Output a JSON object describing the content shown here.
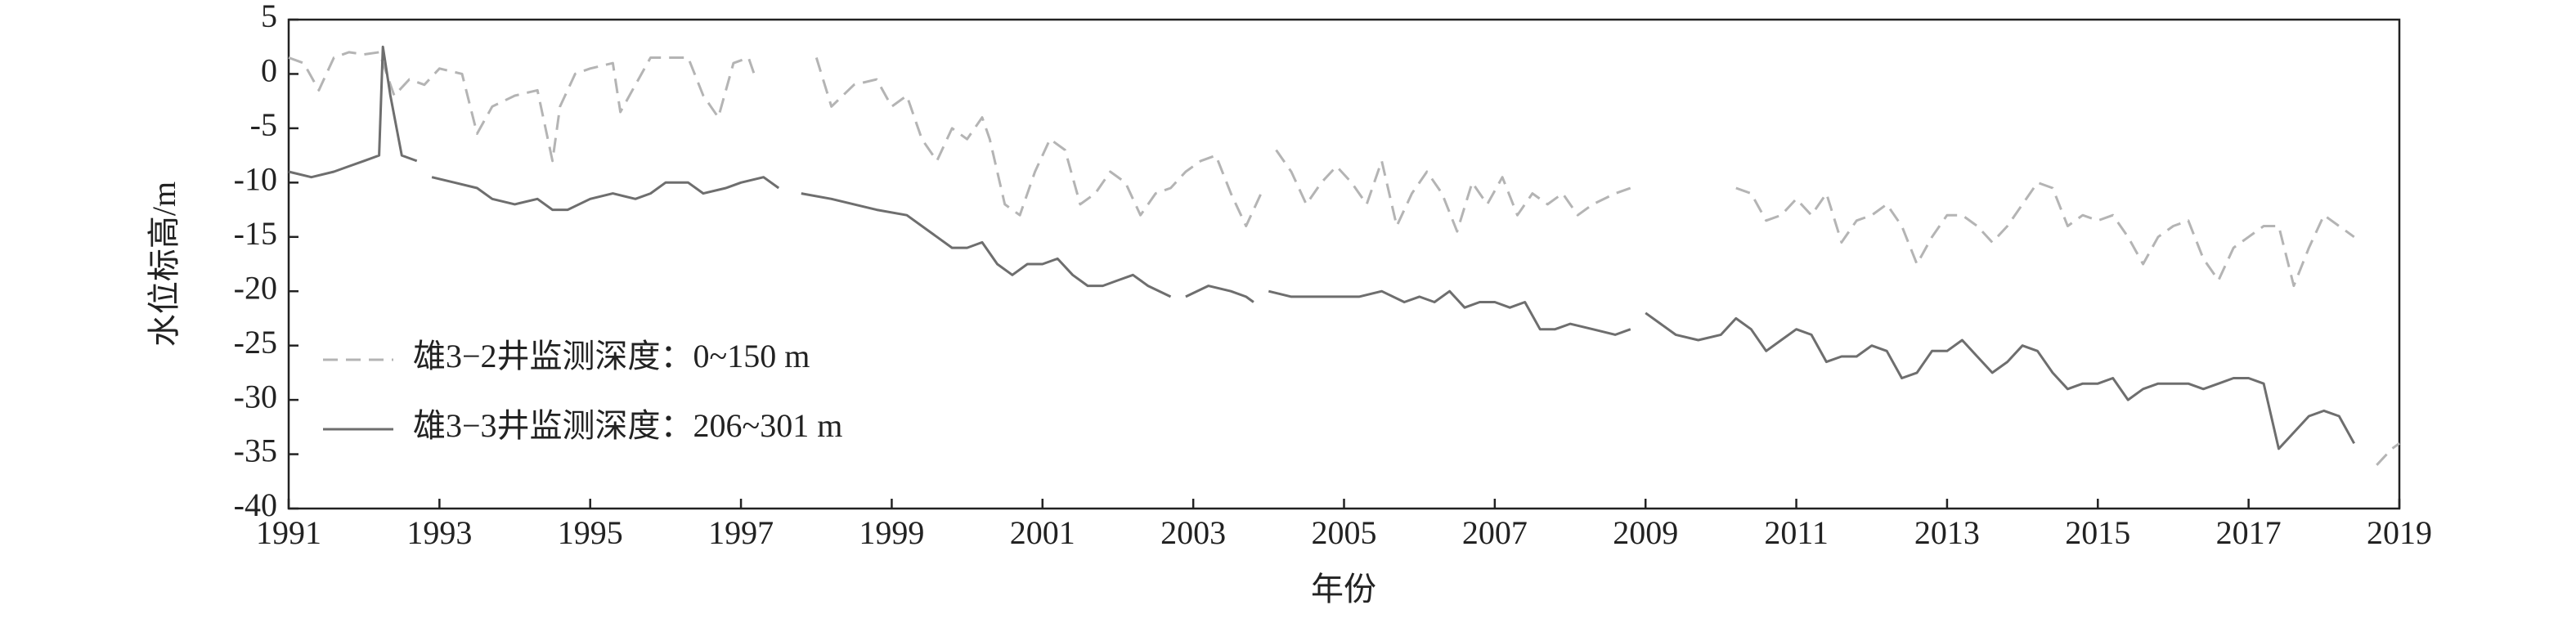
{
  "chart_data": {
    "type": "line",
    "xlabel": "年份",
    "ylabel": "水位标高/m",
    "xlim": [
      1991,
      2019
    ],
    "xticks": [
      1991,
      1993,
      1995,
      1997,
      1999,
      2001,
      2003,
      2005,
      2007,
      2009,
      2011,
      2013,
      2015,
      2017,
      2019
    ],
    "ylim": [
      -40,
      5
    ],
    "yticks": [
      5,
      0,
      -5,
      -10,
      -15,
      -20,
      -25,
      -30,
      -35,
      -40
    ],
    "legend": "lower left",
    "grid": false,
    "series": [
      {
        "name": "雄3−2井监测深度：0~150 m",
        "color": "#b4b4b4",
        "linestyle": "dashed",
        "x": [
          1991.0,
          1991.2,
          1991.4,
          1991.6,
          1991.8,
          1992.0,
          1992.2,
          1992.4,
          1992.6,
          1992.8,
          1993.0,
          1993.3,
          1993.5,
          1993.7,
          1994.0,
          1994.3,
          1994.5,
          1994.6,
          1994.8,
          1995.0,
          1995.3,
          1995.4,
          1995.6,
          1995.8,
          1996.0,
          1996.3,
          1996.5,
          1996.7,
          1996.9,
          1997.1,
          1997.2,
          null,
          1998.0,
          1998.2,
          1998.5,
          1998.8,
          1999.0,
          1999.2,
          1999.4,
          1999.6,
          1999.8,
          2000.0,
          2000.2,
          2000.3,
          2000.5,
          2000.7,
          2000.9,
          2001.1,
          2001.3,
          2001.5,
          2001.7,
          2001.9,
          2002.1,
          2002.3,
          2002.5,
          2002.7,
          2002.9,
          2003.1,
          2003.3,
          2003.5,
          2003.7,
          2003.9,
          null,
          2004.1,
          2004.3,
          2004.5,
          2004.7,
          2004.9,
          2005.1,
          2005.3,
          2005.5,
          2005.7,
          2005.9,
          2006.1,
          2006.3,
          2006.5,
          2006.7,
          2006.9,
          2007.1,
          2007.3,
          2007.5,
          2007.7,
          2007.9,
          2008.1,
          2008.3,
          2008.6,
          2008.8,
          null,
          2010.2,
          2010.4,
          2010.6,
          2010.8,
          2011.0,
          2011.2,
          2011.4,
          2011.6,
          2011.8,
          2012.0,
          2012.2,
          2012.4,
          2012.6,
          2012.8,
          2013.0,
          2013.2,
          2013.4,
          2013.6,
          2013.8,
          2014.0,
          2014.2,
          2014.4,
          2014.6,
          2014.8,
          2015.0,
          2015.2,
          2015.4,
          2015.6,
          2015.8,
          2016.0,
          2016.2,
          2016.4,
          2016.6,
          2016.8,
          2017.0,
          2017.2,
          2017.4,
          2017.6,
          2017.8,
          2018.0,
          2018.2,
          2018.4,
          null,
          2018.7,
          2018.9,
          2019.0
        ],
        "values": [
          1.5,
          1,
          -1.5,
          1.5,
          2,
          1.8,
          2,
          -2,
          -0.5,
          -1,
          0.5,
          0,
          -5.5,
          -3,
          -2,
          -1.5,
          -8,
          -3,
          0,
          0.5,
          1,
          -3.5,
          -1,
          1.5,
          1.5,
          1.5,
          -2,
          -4,
          1,
          1.5,
          -0.5,
          null,
          1.5,
          -3,
          -1,
          -0.5,
          -3,
          -2,
          -6,
          -8,
          -5,
          -6,
          -4,
          -6,
          -12,
          -13,
          -9,
          -6,
          -7,
          -12,
          -11,
          -9,
          -10,
          -13,
          -11,
          -10.5,
          -9,
          -8,
          -7.5,
          -11,
          -14,
          -11,
          null,
          -7,
          -9,
          -12,
          -10,
          -8.5,
          -10,
          -12,
          -8,
          -14,
          -11,
          -9,
          -11,
          -14.5,
          -10,
          -12,
          -9.5,
          -13,
          -11,
          -12,
          -11,
          -13,
          -12,
          -11,
          -10.5,
          null,
          -10.5,
          -11,
          -13.5,
          -13,
          -11.5,
          -13,
          -11,
          -15.5,
          -13.5,
          -13,
          -12,
          -14,
          -17.5,
          -15,
          -13,
          -13,
          -14,
          -15.5,
          -14,
          -12,
          -10,
          -10.5,
          -14,
          -13,
          -13.5,
          -13,
          -15,
          -17.5,
          -15,
          -14,
          -13.5,
          -17,
          -19,
          -16,
          -15,
          -14,
          -14,
          -19.5,
          -16,
          -13,
          -14,
          -15,
          null,
          -36,
          -34.5,
          -34
        ]
      },
      {
        "name": "雄3−3井监测深度：206~301 m",
        "color": "#6e6e6e",
        "linestyle": "solid",
        "x": [
          1991.0,
          1991.3,
          1991.6,
          1991.8,
          1992.0,
          1992.2,
          1992.25,
          1992.35,
          1992.5,
          1992.7,
          null,
          1992.9,
          1993.2,
          1993.5,
          1993.7,
          1994.0,
          1994.3,
          1994.5,
          1994.7,
          1995.0,
          1995.3,
          1995.6,
          1995.8,
          1996.0,
          1996.3,
          1996.5,
          1996.8,
          1997.0,
          1997.3,
          1997.5,
          null,
          1997.8,
          1998.2,
          1998.5,
          1998.8,
          1999.2,
          1999.5,
          1999.8,
          2000.0,
          2000.2,
          2000.4,
          2000.6,
          2000.8,
          2001.0,
          2001.2,
          2001.4,
          2001.6,
          2001.8,
          2002.0,
          2002.2,
          2002.4,
          2002.7,
          null,
          2002.9,
          2003.2,
          2003.5,
          2003.7,
          2003.8,
          null,
          2004.0,
          2004.3,
          2004.6,
          2004.9,
          2005.2,
          2005.5,
          2005.8,
          2006.0,
          2006.2,
          2006.4,
          2006.6,
          2006.8,
          2007.0,
          2007.2,
          2007.4,
          2007.6,
          2007.8,
          2008.0,
          2008.3,
          2008.6,
          2008.8,
          null,
          2009.0,
          2009.2,
          2009.4,
          2009.7,
          2010.0,
          2010.2,
          2010.4,
          2010.6,
          2010.8,
          2011.0,
          2011.2,
          2011.4,
          2011.6,
          2011.8,
          2012.0,
          2012.2,
          2012.4,
          2012.6,
          2012.8,
          2013.0,
          2013.2,
          2013.4,
          2013.6,
          2013.8,
          2014.0,
          2014.2,
          2014.4,
          2014.6,
          2014.8,
          2015.0,
          2015.2,
          2015.4,
          2015.6,
          2015.8,
          2016.0,
          2016.2,
          2016.4,
          2016.6,
          2016.8,
          2017.0,
          2017.2,
          2017.4,
          2017.6,
          2017.8,
          2018.0,
          2018.2,
          2018.4
        ],
        "values": [
          -9,
          -9.5,
          -9,
          -8.5,
          -8,
          -7.5,
          2.5,
          -2,
          -7.5,
          -8,
          null,
          -9.5,
          -10,
          -10.5,
          -11.5,
          -12,
          -11.5,
          -12.5,
          -12.5,
          -11.5,
          -11,
          -11.5,
          -11,
          -10,
          -10,
          -11,
          -10.5,
          -10,
          -9.5,
          -10.5,
          null,
          -11,
          -11.5,
          -12,
          -12.5,
          -13,
          -14.5,
          -16,
          -16,
          -15.5,
          -17.5,
          -18.5,
          -17.5,
          -17.5,
          -17,
          -18.5,
          -19.5,
          -19.5,
          -19,
          -18.5,
          -19.5,
          -20.5,
          null,
          -20.5,
          -19.5,
          -20,
          -20.5,
          -21,
          null,
          -20,
          -20.5,
          -20.5,
          -20.5,
          -20.5,
          -20,
          -21,
          -20.5,
          -21,
          -20,
          -21.5,
          -21,
          -21,
          -21.5,
          -21,
          -23.5,
          -23.5,
          -23,
          -23.5,
          -24,
          -23.5,
          null,
          -22,
          -23,
          -24,
          -24.5,
          -24,
          -22.5,
          -23.5,
          -25.5,
          -24.5,
          -23.5,
          -24,
          -26.5,
          -26,
          -26,
          -25,
          -25.5,
          -28,
          -27.5,
          -25.5,
          -25.5,
          -24.5,
          -26,
          -27.5,
          -26.5,
          -25,
          -25.5,
          -27.5,
          -29,
          -28.5,
          -28.5,
          -28,
          -30,
          -29,
          -28.5,
          -28.5,
          -28.5,
          -29,
          -28.5,
          -28,
          -28,
          -28.5,
          -34.5,
          -33,
          -31.5,
          -31,
          -31.5,
          -34
        ]
      }
    ]
  }
}
